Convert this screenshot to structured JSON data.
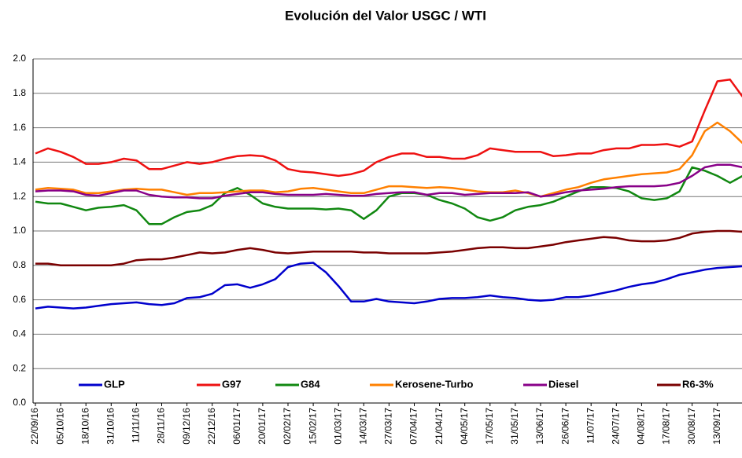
{
  "chart_data": {
    "type": "line",
    "title": "Evolución del Valor USGC / WTI",
    "categories": [
      "22/09/16",
      null,
      "05/10/16",
      null,
      "18/10/16",
      null,
      "31/10/16",
      null,
      "11/11/16",
      null,
      "28/11/16",
      null,
      "09/12/16",
      null,
      "22/12/16",
      null,
      "06/01/17",
      null,
      "20/01/17",
      null,
      "02/02/17",
      null,
      "15/02/17",
      null,
      "01/03/17",
      null,
      "14/03/17",
      null,
      "27/03/17",
      null,
      "07/04/17",
      null,
      "21/04/17",
      null,
      "04/05/17",
      null,
      "17/05/17",
      null,
      "31/05/17",
      null,
      "13/06/17",
      null,
      "26/06/17",
      null,
      "11/07/17",
      null,
      "24/07/17",
      null,
      "04/08/17",
      null,
      "17/08/17",
      null,
      "30/08/17",
      null,
      "13/09/17",
      null,
      null
    ],
    "series": [
      {
        "name": "GLP",
        "color": "#0000cc",
        "values": [
          0.55,
          0.56,
          0.555,
          0.55,
          0.555,
          0.565,
          0.575,
          0.58,
          0.585,
          0.575,
          0.57,
          0.58,
          0.61,
          0.615,
          0.635,
          0.685,
          0.69,
          0.67,
          0.69,
          0.72,
          0.79,
          0.81,
          0.815,
          0.76,
          0.68,
          0.59,
          0.59,
          0.605,
          0.59,
          0.585,
          0.58,
          0.59,
          0.605,
          0.61,
          0.61,
          0.615,
          0.625,
          0.615,
          0.61,
          0.6,
          0.595,
          0.6,
          0.615,
          0.615,
          0.625,
          0.64,
          0.655,
          0.675,
          0.69,
          0.7,
          0.72,
          0.745,
          0.76,
          0.775,
          0.785,
          0.79,
          0.795
        ]
      },
      {
        "name": "G97",
        "color": "#ee1111",
        "values": [
          1.45,
          1.48,
          1.46,
          1.43,
          1.39,
          1.39,
          1.4,
          1.42,
          1.41,
          1.36,
          1.36,
          1.38,
          1.4,
          1.39,
          1.4,
          1.42,
          1.435,
          1.44,
          1.435,
          1.41,
          1.36,
          1.345,
          1.34,
          1.33,
          1.32,
          1.33,
          1.35,
          1.4,
          1.43,
          1.45,
          1.45,
          1.43,
          1.43,
          1.42,
          1.42,
          1.44,
          1.48,
          1.47,
          1.46,
          1.46,
          1.46,
          1.435,
          1.44,
          1.45,
          1.45,
          1.47,
          1.48,
          1.48,
          1.5,
          1.5,
          1.505,
          1.49,
          1.52,
          1.7,
          1.87,
          1.88,
          1.78
        ]
      },
      {
        "name": "G84",
        "color": "#118811",
        "values": [
          1.17,
          1.16,
          1.16,
          1.14,
          1.12,
          1.135,
          1.14,
          1.15,
          1.12,
          1.04,
          1.04,
          1.08,
          1.11,
          1.12,
          1.15,
          1.22,
          1.25,
          1.21,
          1.16,
          1.14,
          1.13,
          1.13,
          1.13,
          1.125,
          1.13,
          1.12,
          1.07,
          1.12,
          1.2,
          1.22,
          1.22,
          1.21,
          1.18,
          1.16,
          1.13,
          1.08,
          1.06,
          1.08,
          1.12,
          1.14,
          1.15,
          1.17,
          1.2,
          1.23,
          1.255,
          1.255,
          1.25,
          1.23,
          1.19,
          1.18,
          1.19,
          1.23,
          1.37,
          1.35,
          1.32,
          1.28,
          1.32
        ]
      },
      {
        "name": "Kerosene-Turbo",
        "color": "#ff8000",
        "values": [
          1.24,
          1.25,
          1.245,
          1.24,
          1.22,
          1.22,
          1.23,
          1.24,
          1.245,
          1.24,
          1.24,
          1.225,
          1.21,
          1.22,
          1.22,
          1.225,
          1.23,
          1.235,
          1.235,
          1.225,
          1.23,
          1.245,
          1.25,
          1.24,
          1.23,
          1.22,
          1.22,
          1.24,
          1.26,
          1.26,
          1.255,
          1.25,
          1.255,
          1.25,
          1.24,
          1.23,
          1.225,
          1.225,
          1.235,
          1.22,
          1.2,
          1.22,
          1.24,
          1.255,
          1.28,
          1.3,
          1.31,
          1.32,
          1.33,
          1.335,
          1.34,
          1.36,
          1.44,
          1.58,
          1.63,
          1.58,
          1.51
        ]
      },
      {
        "name": "Diesel",
        "color": "#880088",
        "values": [
          1.23,
          1.235,
          1.235,
          1.23,
          1.21,
          1.205,
          1.22,
          1.235,
          1.235,
          1.21,
          1.2,
          1.195,
          1.195,
          1.19,
          1.19,
          1.205,
          1.215,
          1.225,
          1.225,
          1.215,
          1.21,
          1.21,
          1.21,
          1.215,
          1.21,
          1.205,
          1.205,
          1.215,
          1.22,
          1.225,
          1.225,
          1.21,
          1.22,
          1.22,
          1.21,
          1.215,
          1.22,
          1.22,
          1.22,
          1.225,
          1.2,
          1.21,
          1.225,
          1.235,
          1.24,
          1.245,
          1.255,
          1.26,
          1.26,
          1.26,
          1.265,
          1.28,
          1.32,
          1.37,
          1.385,
          1.385,
          1.37
        ]
      },
      {
        "name": "R6-3%",
        "color": "#7a0000",
        "values": [
          0.81,
          0.81,
          0.8,
          0.8,
          0.8,
          0.8,
          0.8,
          0.81,
          0.83,
          0.835,
          0.835,
          0.845,
          0.86,
          0.875,
          0.87,
          0.875,
          0.89,
          0.9,
          0.89,
          0.875,
          0.87,
          0.875,
          0.88,
          0.88,
          0.88,
          0.88,
          0.875,
          0.875,
          0.87,
          0.87,
          0.87,
          0.87,
          0.875,
          0.88,
          0.89,
          0.9,
          0.905,
          0.905,
          0.9,
          0.9,
          0.91,
          0.92,
          0.935,
          0.945,
          0.955,
          0.965,
          0.96,
          0.945,
          0.94,
          0.94,
          0.945,
          0.96,
          0.985,
          0.995,
          1.0,
          1.0,
          0.995
        ]
      }
    ],
    "ylim": [
      0,
      2
    ],
    "yticks": [
      {
        "value": 0,
        "label": "0.0"
      },
      0.2,
      0.4,
      0.6,
      0.8,
      {
        "value": 1,
        "label": "1.0"
      },
      1.2,
      1.4,
      1.6,
      1.8,
      {
        "value": 2,
        "label": "2.0"
      }
    ],
    "grid": true,
    "legend": "bottom"
  }
}
